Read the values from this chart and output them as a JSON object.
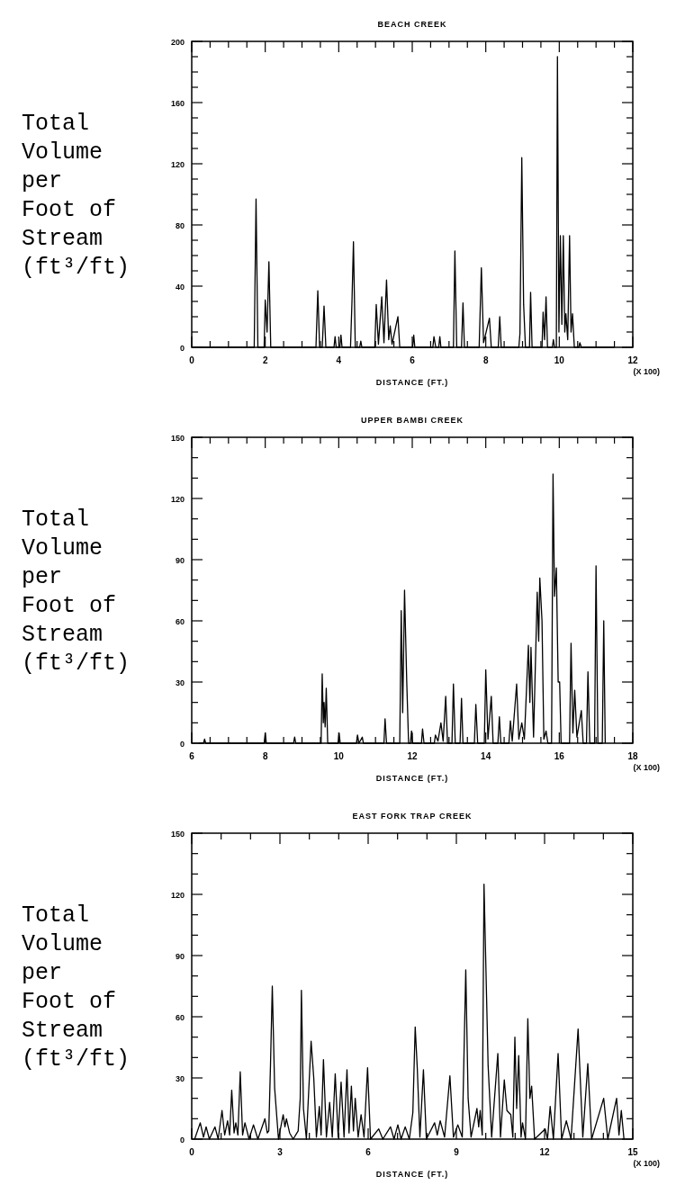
{
  "chart_data": [
    {
      "type": "line",
      "title": "BEACH CREEK",
      "xlabel": "DISTANCE (FT.)",
      "ylabel": "Total Volume per Foot of Stream (ft³/ft)",
      "annotations": [
        "(X 100)"
      ],
      "xlim": [
        0,
        12
      ],
      "ylim": [
        0,
        200
      ],
      "xticks": [
        0,
        {
          "value": 0.5,
          "label": null
        },
        {
          "value": 1,
          "label": null
        },
        {
          "value": 1.5,
          "label": null
        },
        2,
        {
          "value": 2.5,
          "label": null
        },
        {
          "value": 3,
          "label": null
        },
        {
          "value": 3.5,
          "label": null
        },
        4,
        {
          "value": 4.5,
          "label": null
        },
        {
          "value": 5,
          "label": null
        },
        {
          "value": 5.5,
          "label": null
        },
        6,
        {
          "value": 6.5,
          "label": null
        },
        {
          "value": 7,
          "label": null
        },
        {
          "value": 7.5,
          "label": null
        },
        8,
        {
          "value": 8.5,
          "label": null
        },
        {
          "value": 9,
          "label": null
        },
        {
          "value": 9.5,
          "label": null
        },
        10,
        {
          "value": 10.5,
          "label": null
        },
        {
          "value": 11,
          "label": null
        },
        {
          "value": 11.5,
          "label": null
        },
        12
      ],
      "yticks": [
        0,
        {
          "value": 10,
          "label": null
        },
        {
          "value": 20,
          "label": null
        },
        {
          "value": 30,
          "label": null
        },
        40,
        {
          "value": 50,
          "label": null
        },
        {
          "value": 60,
          "label": null
        },
        {
          "value": 70,
          "label": null
        },
        80,
        {
          "value": 90,
          "label": null
        },
        {
          "value": 100,
          "label": null
        },
        {
          "value": 110,
          "label": null
        },
        120,
        {
          "value": 130,
          "label": null
        },
        {
          "value": 140,
          "label": null
        },
        {
          "value": 150,
          "label": null
        },
        160,
        {
          "value": 170,
          "label": null
        },
        {
          "value": 180,
          "label": null
        },
        {
          "value": 190,
          "label": null
        },
        200
      ],
      "series": [
        {
          "color": "#000000",
          "x": [
            0,
            1.7,
            1.75,
            1.8,
            1.97,
            2.0,
            2.05,
            2.1,
            2.15,
            3.38,
            3.43,
            3.48,
            3.55,
            3.6,
            3.65,
            3.87,
            3.9,
            3.93,
            4.03,
            4.06,
            4.09,
            4.32,
            4.36,
            4.4,
            4.45,
            4.57,
            4.6,
            4.63,
            4.98,
            5.02,
            5.08,
            5.17,
            5.23,
            5.3,
            5.36,
            5.4,
            5.45,
            5.61,
            5.66,
            6.01,
            6.04,
            6.07,
            6.56,
            6.59,
            6.64,
            6.72,
            6.75,
            6.78,
            7.12,
            7.16,
            7.21,
            7.34,
            7.38,
            7.42,
            7.82,
            7.88,
            7.94,
            8.1,
            8.15,
            8.34,
            8.38,
            8.42,
            8.9,
            8.93,
            8.98,
            9.03,
            9.08,
            9.19,
            9.22,
            9.26,
            9.53,
            9.56,
            9.6,
            9.64,
            9.68,
            9.81,
            9.84,
            9.87,
            9.92,
            9.95,
            9.99,
            10.03,
            10.07,
            10.11,
            10.15,
            10.18,
            10.23,
            10.28,
            10.32,
            10.36,
            10.41,
            10.53,
            10.56,
            10.6,
            11.5
          ],
          "values": [
            0,
            0,
            97,
            0,
            0,
            31,
            10,
            56,
            0,
            0,
            37,
            0,
            0,
            27,
            0,
            0,
            7,
            0,
            0,
            8,
            0,
            0,
            30,
            69,
            0,
            0,
            4,
            0,
            0,
            28,
            2,
            33,
            3,
            44,
            5,
            14,
            2,
            20,
            0,
            0,
            8,
            0,
            0,
            7,
            0,
            0,
            7,
            0,
            0,
            63,
            0,
            0,
            29,
            0,
            0,
            52,
            3,
            19,
            0,
            0,
            20,
            0,
            0,
            9,
            124,
            28,
            0,
            0,
            36,
            0,
            0,
            23,
            5,
            33,
            0,
            0,
            5,
            0,
            0,
            190,
            10,
            73,
            15,
            73,
            10,
            22,
            5,
            73,
            10,
            22,
            0,
            0,
            3,
            0,
            0
          ]
        }
      ]
    },
    {
      "type": "line",
      "title": "UPPER BAMBI CREEK",
      "xlabel": "DISTANCE (FT.)",
      "ylabel": "Total Volume per Foot of Stream (ft³/ft)",
      "annotations": [
        "(X 100)"
      ],
      "xlim": [
        6,
        18
      ],
      "ylim": [
        0,
        150
      ],
      "xticks": [
        6,
        {
          "value": 6.5,
          "label": null
        },
        {
          "value": 7,
          "label": null
        },
        {
          "value": 7.5,
          "label": null
        },
        8,
        {
          "value": 8.5,
          "label": null
        },
        {
          "value": 9,
          "label": null
        },
        {
          "value": 9.5,
          "label": null
        },
        10,
        {
          "value": 10.5,
          "label": null
        },
        {
          "value": 11,
          "label": null
        },
        {
          "value": 11.5,
          "label": null
        },
        12,
        {
          "value": 12.5,
          "label": null
        },
        {
          "value": 13,
          "label": null
        },
        {
          "value": 13.5,
          "label": null
        },
        14,
        {
          "value": 14.5,
          "label": null
        },
        {
          "value": 15,
          "label": null
        },
        {
          "value": 15.5,
          "label": null
        },
        16,
        {
          "value": 16.5,
          "label": null
        },
        {
          "value": 17,
          "label": null
        },
        {
          "value": 17.5,
          "label": null
        },
        18
      ],
      "yticks": [
        0,
        {
          "value": 10,
          "label": null
        },
        {
          "value": 20,
          "label": null
        },
        30,
        {
          "value": 40,
          "label": null
        },
        {
          "value": 50,
          "label": null
        },
        60,
        {
          "value": 70,
          "label": null
        },
        {
          "value": 80,
          "label": null
        },
        90,
        {
          "value": 100,
          "label": null
        },
        {
          "value": 110,
          "label": null
        },
        120,
        {
          "value": 130,
          "label": null
        },
        {
          "value": 140,
          "label": null
        },
        150
      ],
      "series": [
        {
          "color": "#000000",
          "x": [
            6.2,
            6.32,
            6.35,
            6.38,
            7.97,
            8.0,
            8.03,
            8.77,
            8.8,
            8.83,
            9.52,
            9.55,
            9.58,
            9.6,
            9.63,
            9.66,
            9.7,
            9.98,
            10.01,
            10.04,
            10.48,
            10.51,
            10.55,
            10.64,
            10.67,
            11.23,
            11.26,
            11.3,
            11.66,
            11.7,
            11.74,
            11.79,
            11.85,
            11.9,
            11.95,
            11.98,
            12.01,
            12.25,
            12.28,
            12.32,
            12.6,
            12.63,
            12.7,
            12.78,
            12.84,
            12.91,
            12.96,
            13.08,
            13.12,
            13.17,
            13.3,
            13.34,
            13.38,
            13.69,
            13.73,
            13.78,
            13.96,
            14.0,
            14.06,
            14.15,
            14.2,
            14.33,
            14.37,
            14.41,
            14.63,
            14.67,
            14.72,
            14.84,
            14.9,
            14.98,
            15.05,
            15.16,
            15.2,
            15.23,
            15.3,
            15.4,
            15.44,
            15.47,
            15.53,
            15.58,
            15.64,
            15.69,
            15.79,
            15.83,
            15.87,
            15.92,
            15.97,
            16.01,
            16.05,
            16.28,
            16.32,
            16.37,
            16.42,
            16.48,
            16.6,
            16.65,
            16.74,
            16.78,
            16.83,
            16.96,
            17.0,
            17.05,
            17.17,
            17.21,
            17.25
          ],
          "values": [
            0,
            0,
            2,
            0,
            0,
            5,
            0,
            0,
            3,
            0,
            0,
            34,
            10,
            20,
            8,
            27,
            0,
            0,
            5,
            0,
            0,
            4,
            0,
            3,
            0,
            0,
            12,
            0,
            0,
            65,
            15,
            75,
            30,
            0,
            0,
            6,
            0,
            0,
            7,
            0,
            0,
            4,
            1,
            10,
            1,
            23,
            0,
            0,
            29,
            0,
            0,
            22,
            0,
            0,
            19,
            0,
            0,
            36,
            2,
            23,
            0,
            0,
            13,
            0,
            0,
            11,
            1,
            29,
            2,
            10,
            2,
            48,
            20,
            47,
            3,
            74,
            50,
            81,
            60,
            2,
            6,
            0,
            0,
            132,
            72,
            86,
            30,
            30,
            0,
            0,
            49,
            5,
            26,
            3,
            16,
            0,
            0,
            35,
            0,
            0,
            87,
            0,
            0,
            60,
            0
          ]
        }
      ]
    },
    {
      "type": "line",
      "title": "EAST FORK TRAP CREEK",
      "xlabel": "DISTANCE (FT.)",
      "ylabel": "Total Volume per Foot of Stream (ft³/ft)",
      "annotations": [
        "(X 100)"
      ],
      "xlim": [
        0,
        15
      ],
      "ylim": [
        0,
        150
      ],
      "xticks": [
        0,
        {
          "value": 1,
          "label": null
        },
        {
          "value": 2,
          "label": null
        },
        3,
        {
          "value": 4,
          "label": null
        },
        {
          "value": 5,
          "label": null
        },
        6,
        {
          "value": 7,
          "label": null
        },
        {
          "value": 8,
          "label": null
        },
        9,
        {
          "value": 10,
          "label": null
        },
        {
          "value": 11,
          "label": null
        },
        12,
        {
          "value": 13,
          "label": null
        },
        {
          "value": 14,
          "label": null
        },
        15
      ],
      "yticks": [
        0,
        {
          "value": 10,
          "label": null
        },
        {
          "value": 20,
          "label": null
        },
        30,
        {
          "value": 40,
          "label": null
        },
        {
          "value": 50,
          "label": null
        },
        60,
        {
          "value": 70,
          "label": null
        },
        {
          "value": 80,
          "label": null
        },
        90,
        {
          "value": 100,
          "label": null
        },
        {
          "value": 110,
          "label": null
        },
        120,
        {
          "value": 130,
          "label": null
        },
        {
          "value": 140,
          "label": null
        },
        150
      ],
      "series": [
        {
          "color": "#000000",
          "x": [
            0.1,
            0.29,
            0.4,
            0.49,
            0.6,
            0.79,
            0.9,
            1.03,
            1.12,
            1.22,
            1.29,
            1.36,
            1.44,
            1.5,
            1.57,
            1.65,
            1.73,
            1.81,
            1.95,
            2.1,
            2.25,
            2.49,
            2.57,
            2.62,
            2.68,
            2.74,
            2.82,
            2.95,
            3.11,
            3.17,
            3.22,
            3.33,
            3.45,
            3.62,
            3.69,
            3.73,
            3.8,
            3.9,
            4.06,
            4.15,
            4.24,
            4.34,
            4.4,
            4.48,
            4.58,
            4.69,
            4.78,
            4.88,
            4.98,
            5.08,
            5.18,
            5.28,
            5.35,
            5.43,
            5.5,
            5.56,
            5.66,
            5.76,
            5.86,
            5.98,
            6.08,
            6.36,
            6.5,
            6.76,
            6.88,
            7.01,
            7.12,
            7.26,
            7.4,
            7.52,
            7.6,
            7.67,
            7.76,
            7.88,
            7.98,
            8.26,
            8.35,
            8.45,
            8.6,
            8.78,
            8.9,
            9.05,
            9.2,
            9.32,
            9.4,
            9.5,
            9.7,
            9.76,
            9.81,
            9.88,
            9.94,
            10.08,
            10.2,
            10.41,
            10.5,
            10.63,
            10.72,
            10.85,
            10.92,
            10.99,
            11.05,
            11.12,
            11.2,
            11.25,
            11.35,
            11.43,
            11.5,
            11.56,
            11.66,
            12.02,
            12.1,
            12.19,
            12.3,
            12.46,
            12.58,
            12.74,
            12.9,
            13.14,
            13.3,
            13.47,
            13.6,
            14.01,
            14.15,
            14.45,
            14.53,
            14.61,
            14.7
          ],
          "values": [
            0,
            8,
            1,
            6,
            0,
            6,
            0,
            14,
            2,
            9,
            2,
            24,
            3,
            8,
            2,
            33,
            2,
            8,
            0,
            7,
            0,
            10,
            3,
            4,
            37,
            75,
            25,
            0,
            12,
            6,
            10,
            3,
            0,
            4,
            20,
            73,
            15,
            0,
            48,
            30,
            1,
            16,
            2,
            39,
            1,
            18,
            1,
            32,
            1,
            28,
            1,
            34,
            3,
            26,
            4,
            20,
            1,
            12,
            1,
            35,
            0,
            5,
            0,
            6,
            0,
            7,
            0,
            6,
            0,
            13,
            55,
            35,
            1,
            34,
            0,
            8,
            2,
            9,
            1,
            31,
            1,
            7,
            1,
            83,
            20,
            1,
            15,
            6,
            14,
            2,
            125,
            36,
            1,
            42,
            1,
            29,
            14,
            12,
            1,
            50,
            15,
            41,
            1,
            8,
            0,
            59,
            20,
            26,
            0,
            5,
            0,
            16,
            0,
            42,
            0,
            9,
            0,
            54,
            1,
            37,
            0,
            20,
            0,
            20,
            2,
            14,
            0
          ]
        }
      ]
    }
  ]
}
